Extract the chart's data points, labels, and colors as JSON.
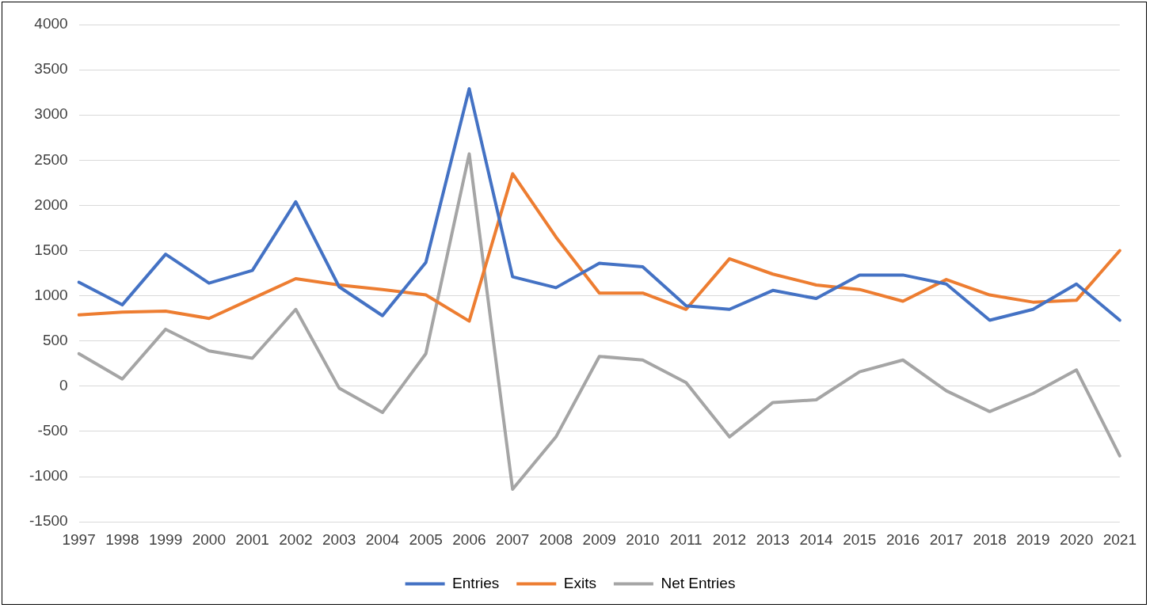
{
  "chart_data": {
    "type": "line",
    "categories": [
      "1997",
      "1998",
      "1999",
      "2000",
      "2001",
      "2002",
      "2003",
      "2004",
      "2005",
      "2006",
      "2007",
      "2008",
      "2009",
      "2010",
      "2011",
      "2012",
      "2013",
      "2014",
      "2015",
      "2016",
      "2017",
      "2018",
      "2019",
      "2020",
      "2021"
    ],
    "series": [
      {
        "name": "Entries",
        "color": "#4472c4",
        "values": [
          1150,
          900,
          1460,
          1140,
          1280,
          2040,
          1100,
          780,
          1370,
          3290,
          1210,
          1090,
          1360,
          1320,
          890,
          850,
          1060,
          970,
          1230,
          1230,
          1130,
          730,
          850,
          1130,
          730
        ]
      },
      {
        "name": "Exits",
        "color": "#ed7d31",
        "values": [
          790,
          820,
          830,
          750,
          970,
          1190,
          1120,
          1070,
          1010,
          720,
          2350,
          1650,
          1030,
          1030,
          850,
          1410,
          1240,
          1120,
          1070,
          940,
          1180,
          1010,
          930,
          950,
          1500
        ]
      },
      {
        "name": "Net Entries",
        "color": "#a5a5a5",
        "values": [
          360,
          80,
          630,
          390,
          310,
          850,
          -20,
          -290,
          360,
          2570,
          -1140,
          -560,
          330,
          290,
          40,
          -560,
          -180,
          -150,
          160,
          290,
          -50,
          -280,
          -80,
          180,
          -770
        ]
      }
    ],
    "ylim": [
      -1500,
      4000
    ],
    "yticks": [
      -1500,
      -1000,
      -500,
      0,
      500,
      1000,
      1500,
      2000,
      2500,
      3000,
      3500,
      4000
    ],
    "grid": "y",
    "legend": "bottom",
    "marker": "none",
    "line_style": "solid"
  }
}
